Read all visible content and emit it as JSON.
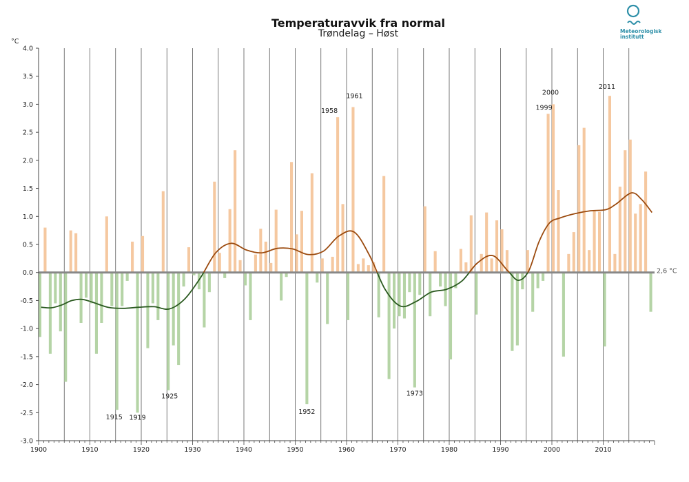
{
  "colors": {
    "warm_bar": "#f5c8a0",
    "cold_bar": "#b5d4a6",
    "warm_line": "#9b4a0e",
    "cold_line": "#2b5a20",
    "grid": "#555555",
    "zero_line": "#888888",
    "logo": "#2d8fa8"
  },
  "logo": {
    "line1": "Meteorologisk",
    "line2": "institutt",
    "icon": "met-logo-icon"
  },
  "chart_data": {
    "type": "bar",
    "title": "Temperaturavvik fra normal",
    "subtitle": "Trøndelag – Høst",
    "ylabel": "°C",
    "ylim": [
      -3.0,
      4.0
    ],
    "xlim": [
      1900,
      2020
    ],
    "yticks": [
      "4.0",
      "3.5",
      "3.0",
      "2.5",
      "2.0",
      "1.5",
      "1.0",
      "0.5",
      "0.0",
      "-0.5",
      "-1.0",
      "-1.5",
      "-2.0",
      "-2.5",
      "-3.0"
    ],
    "xticks": [
      "1900",
      "1910",
      "1920",
      "1930",
      "1940",
      "1950",
      "1960",
      "1970",
      "1980",
      "1990",
      "2000",
      "2010"
    ],
    "normal_label": "2,6 °C",
    "years": [
      1900,
      1901,
      1902,
      1903,
      1904,
      1905,
      1906,
      1907,
      1908,
      1909,
      1910,
      1911,
      1912,
      1913,
      1914,
      1915,
      1916,
      1917,
      1918,
      1919,
      1920,
      1921,
      1922,
      1923,
      1924,
      1925,
      1926,
      1927,
      1928,
      1929,
      1930,
      1931,
      1932,
      1933,
      1934,
      1935,
      1936,
      1937,
      1938,
      1939,
      1940,
      1941,
      1942,
      1943,
      1944,
      1945,
      1946,
      1947,
      1948,
      1949,
      1950,
      1951,
      1952,
      1953,
      1954,
      1955,
      1956,
      1957,
      1958,
      1959,
      1960,
      1961,
      1962,
      1963,
      1964,
      1965,
      1966,
      1967,
      1968,
      1969,
      1970,
      1971,
      1972,
      1973,
      1974,
      1975,
      1976,
      1977,
      1978,
      1979,
      1980,
      1981,
      1982,
      1983,
      1984,
      1985,
      1986,
      1987,
      1988,
      1989,
      1990,
      1991,
      1992,
      1993,
      1994,
      1995,
      1996,
      1997,
      1998,
      1999,
      2000,
      2001,
      2002,
      2003,
      2004,
      2005,
      2006,
      2007,
      2008,
      2009,
      2010,
      2011,
      2012,
      2013,
      2014,
      2015,
      2016,
      2017,
      2018,
      2019
    ],
    "values": [
      -1.15,
      0.8,
      -1.45,
      -0.55,
      -1.05,
      -1.95,
      0.75,
      0.7,
      -0.9,
      -0.45,
      -0.55,
      -1.45,
      -0.9,
      1.0,
      -0.6,
      -2.45,
      -0.6,
      -0.15,
      0.55,
      -2.5,
      0.65,
      -1.35,
      -0.55,
      -0.85,
      1.45,
      -2.1,
      -1.3,
      -1.65,
      -0.25,
      0.45,
      -0.05,
      -0.3,
      -0.98,
      -0.35,
      1.62,
      0.35,
      -0.1,
      1.13,
      2.18,
      0.22,
      -0.23,
      -0.85,
      0.32,
      0.78,
      0.55,
      0.17,
      1.12,
      -0.5,
      -0.08,
      1.97,
      0.68,
      1.1,
      -2.35,
      1.77,
      -0.18,
      0.25,
      -0.92,
      0.28,
      2.77,
      1.22,
      -0.85,
      2.95,
      0.15,
      0.25,
      0.13,
      0.18,
      -0.8,
      1.72,
      -1.9,
      -1.0,
      -0.78,
      -0.82,
      -0.35,
      -2.05,
      -0.4,
      1.18,
      -0.78,
      0.38,
      -0.25,
      -0.6,
      -1.55,
      -0.28,
      0.42,
      0.18,
      1.02,
      -0.75,
      0.33,
      1.07,
      0.25,
      0.93,
      0.77,
      0.4,
      -1.4,
      -1.3,
      -0.3,
      0.4,
      -0.7,
      -0.28,
      -0.15,
      2.83,
      3.0,
      1.47,
      -1.5,
      0.33,
      0.72,
      2.27,
      2.58,
      0.4,
      1.1,
      1.08,
      -1.32,
      3.15,
      0.33,
      1.53,
      2.18,
      2.37,
      1.05,
      1.22,
      1.8,
      -0.7
    ],
    "smoothed": {
      "years": [
        1900,
        1902,
        1904,
        1906,
        1908,
        1910,
        1913,
        1916,
        1919,
        1922,
        1925,
        1928,
        1931,
        1934,
        1937,
        1940,
        1943,
        1946,
        1949,
        1952,
        1955,
        1958,
        1961,
        1964,
        1967,
        1970,
        1973,
        1976,
        1979,
        1982,
        1985,
        1988,
        1991,
        1993,
        1995,
        1997,
        1999,
        2001,
        2004,
        2007,
        2010,
        2012,
        2015,
        2017,
        2019
      ],
      "values": [
        -0.62,
        -0.63,
        -0.58,
        -0.5,
        -0.48,
        -0.53,
        -0.62,
        -0.64,
        -0.62,
        -0.61,
        -0.65,
        -0.47,
        -0.1,
        0.35,
        0.52,
        0.4,
        0.35,
        0.43,
        0.42,
        0.32,
        0.38,
        0.65,
        0.72,
        0.3,
        -0.3,
        -0.6,
        -0.52,
        -0.35,
        -0.3,
        -0.15,
        0.17,
        0.3,
        0.02,
        -0.14,
        0.03,
        0.55,
        0.88,
        0.97,
        1.05,
        1.1,
        1.12,
        1.22,
        1.42,
        1.3,
        1.07
      ]
    },
    "annotations": [
      {
        "year": 1915,
        "label": "1915"
      },
      {
        "year": 1919,
        "label": "1919"
      },
      {
        "year": 1925,
        "label": "1925"
      },
      {
        "year": 1952,
        "label": "1952"
      },
      {
        "year": 1958,
        "label": "1958"
      },
      {
        "year": 1961,
        "label": "1961"
      },
      {
        "year": 1973,
        "label": "1973"
      },
      {
        "year": 1999,
        "label": "1999"
      },
      {
        "year": 2000,
        "label": "2000"
      },
      {
        "year": 2011,
        "label": "2011"
      }
    ]
  }
}
